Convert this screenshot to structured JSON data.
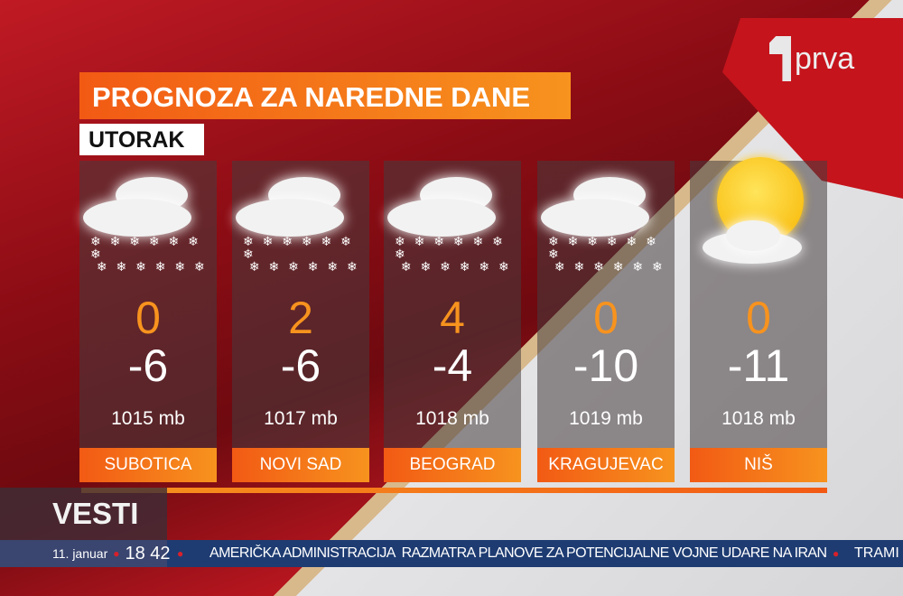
{
  "channel_logo": "prva",
  "title": "PROGNOZA ZA NAREDNE DANE",
  "day": "UTORAK",
  "cities": [
    {
      "name": "SUBOTICA",
      "high": "0",
      "low": "-6",
      "pressure": "1015 mb",
      "icon": "snow-cloud-icon"
    },
    {
      "name": "NOVI SAD",
      "high": "2",
      "low": "-6",
      "pressure": "1017 mb",
      "icon": "snow-cloud-icon"
    },
    {
      "name": "BEOGRAD",
      "high": "4",
      "low": "-4",
      "pressure": "1018 mb",
      "icon": "snow-cloud-icon"
    },
    {
      "name": "KRAGUJEVAC",
      "high": "0",
      "low": "-10",
      "pressure": "1019 mb",
      "icon": "snow-cloud-icon"
    },
    {
      "name": "NIŠ",
      "high": "0",
      "low": "-11",
      "pressure": "1018 mb",
      "icon": "sun-cloud-icon"
    }
  ],
  "show": "VESTI",
  "ticker": {
    "date": "11. januar",
    "time": "18 42",
    "headline": "AMERIČKA ADMINISTRACIJA  RAZMATRA PLANOVE ZA POTENCIJALNE VOJNE UDARE NA IRAN",
    "next": "TRAMI"
  },
  "colors": {
    "accent": "#f7931e",
    "ticker": "#1e3c72",
    "brand_red": "#c5141c"
  }
}
